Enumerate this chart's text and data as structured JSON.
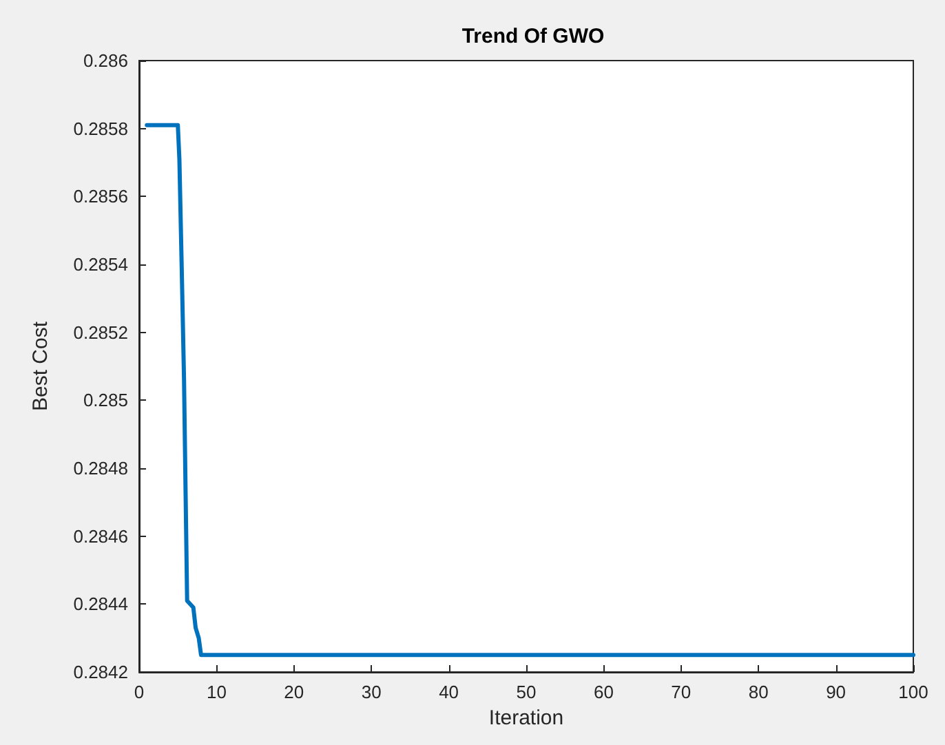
{
  "chart_data": {
    "type": "line",
    "title": "Trend Of GWO",
    "xlabel": "Iteration",
    "ylabel": "Best Cost",
    "series": [
      {
        "color": "#0072bd",
        "x": [
          1,
          5,
          5.2,
          5.5,
          5.8,
          6,
          6.2,
          7,
          7.3,
          7.7,
          8,
          100
        ],
        "values": [
          0.28581,
          0.28581,
          0.28571,
          0.28539,
          0.28506,
          0.28473,
          0.28441,
          0.28439,
          0.28433,
          0.2843,
          0.28425,
          0.28425
        ]
      }
    ],
    "xlim": [
      0,
      100
    ],
    "xticks": [
      0,
      10,
      20,
      30,
      40,
      50,
      60,
      70,
      80,
      90,
      100
    ],
    "ylim": [
      0.2842,
      0.286
    ],
    "yticks": [
      0.2842,
      0.2844,
      0.2846,
      0.2848,
      0.285,
      0.2852,
      0.2854,
      0.2856,
      0.2858,
      0.286
    ],
    "grid": false,
    "marker": "none",
    "line_style": "solid"
  }
}
